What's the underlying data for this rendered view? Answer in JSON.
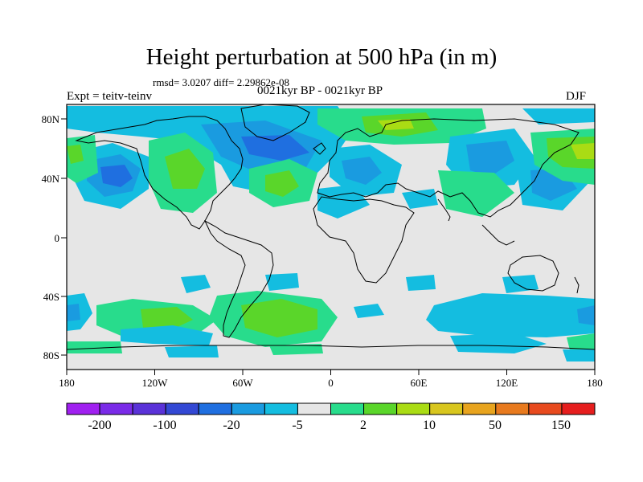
{
  "title": "Height perturbation at 500 hPa (in m)",
  "stats": "rmsd= 3.0207  diff= 2.29862e-08",
  "expt": "Expt = teitv-teinv",
  "period": "0021kyr BP - 0021kyr BP",
  "season": "DJF",
  "map": {
    "lon_ticks": [
      "180",
      "120W",
      "60W",
      "0",
      "60E",
      "120E",
      "180"
    ],
    "lat_ticks": [
      "80N",
      "40N",
      "0",
      "40S",
      "80S"
    ]
  },
  "colorbar": {
    "colors": [
      "#a020f0",
      "#7a2be8",
      "#5a32d8",
      "#3348d4",
      "#1f6fe0",
      "#1a9be0",
      "#14bde0",
      "#e6e6e6",
      "#28dc8c",
      "#5ad62a",
      "#aadc14",
      "#d8c61e",
      "#e8a41e",
      "#e87a1e",
      "#e84a1e",
      "#e61e1e"
    ],
    "labels": [
      "-200",
      "-100",
      "-20",
      "-5",
      "2",
      "10",
      "50",
      "150"
    ]
  }
}
